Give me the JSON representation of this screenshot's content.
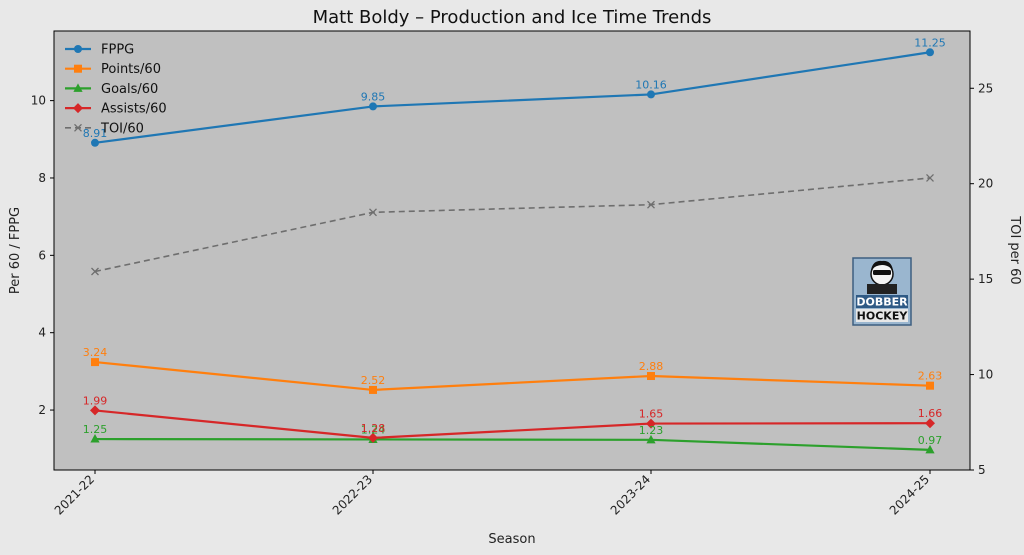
{
  "chart_data": {
    "type": "line",
    "title": "Matt Boldy – Production and Ice Time Trends",
    "xlabel": "Season",
    "ylabel": "Per 60 / FPPG",
    "ylabel_right": "TOI per 60",
    "categories": [
      "2021-22",
      "2022-23",
      "2023-24",
      "2024-25"
    ],
    "ylim": [
      0.45,
      11.8
    ],
    "y_ticks": [
      2,
      4,
      6,
      8,
      10
    ],
    "ylim_right": [
      5,
      28
    ],
    "y_right_ticks": [
      5,
      10,
      15,
      20,
      25
    ],
    "grid": false,
    "legend_position": "top-left",
    "series": [
      {
        "name": "FPPG",
        "values": [
          8.91,
          9.85,
          10.16,
          11.25
        ],
        "color": "#1f77b4",
        "marker": "circle",
        "style": "solid",
        "axis": "left",
        "labels": [
          "8.91",
          "9.85",
          "10.16",
          "11.25"
        ]
      },
      {
        "name": "Points/60",
        "values": [
          3.24,
          2.52,
          2.88,
          2.63
        ],
        "color": "#ff7f0e",
        "marker": "square",
        "style": "solid",
        "axis": "left",
        "labels": [
          "3.24",
          "2.52",
          "2.88",
          "2.63"
        ]
      },
      {
        "name": "Goals/60",
        "values": [
          1.25,
          1.24,
          1.23,
          0.97
        ],
        "color": "#2ca02c",
        "marker": "triangle",
        "style": "solid",
        "axis": "left",
        "labels": [
          "1.25",
          "1.24",
          "1.23",
          "0.97"
        ]
      },
      {
        "name": "Assists/60",
        "values": [
          1.99,
          1.28,
          1.65,
          1.66
        ],
        "color": "#d62728",
        "marker": "diamond",
        "style": "solid",
        "axis": "left",
        "labels": [
          "1.99",
          "1.28",
          "1.65",
          "1.66"
        ]
      },
      {
        "name": "TOI/60",
        "values": [
          15.4,
          18.5,
          18.9,
          20.3
        ],
        "color": "#6e6e6e",
        "marker": "x",
        "style": "dashed",
        "axis": "right",
        "labels": []
      }
    ]
  },
  "logo": {
    "line1": "DOBBER",
    "line2": "HOCKEY",
    "icon": "dobber-hockey-logo"
  },
  "colors": {
    "figure_bg": "#e8e8e8",
    "plot_bg": "#c0c0c0"
  }
}
